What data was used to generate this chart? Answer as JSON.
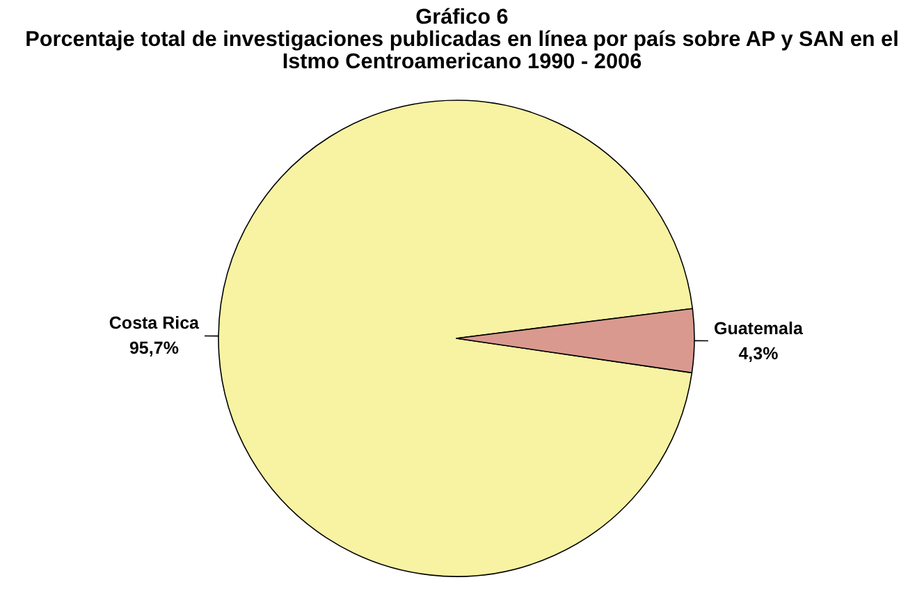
{
  "chart_data": {
    "type": "pie",
    "title": "Gráfico 6",
    "subtitle": "Porcentaje total de investigaciones publicadas en línea por país sobre AP y SAN en el Istmo Centroamericano 1990 - 2006",
    "categories": [
      "Costa Rica",
      "Guatemala"
    ],
    "values": [
      95.7,
      4.3
    ],
    "colors": [
      "#f7f3a2",
      "#d9998f"
    ],
    "value_labels": [
      "95,7%",
      "4,3%"
    ]
  }
}
